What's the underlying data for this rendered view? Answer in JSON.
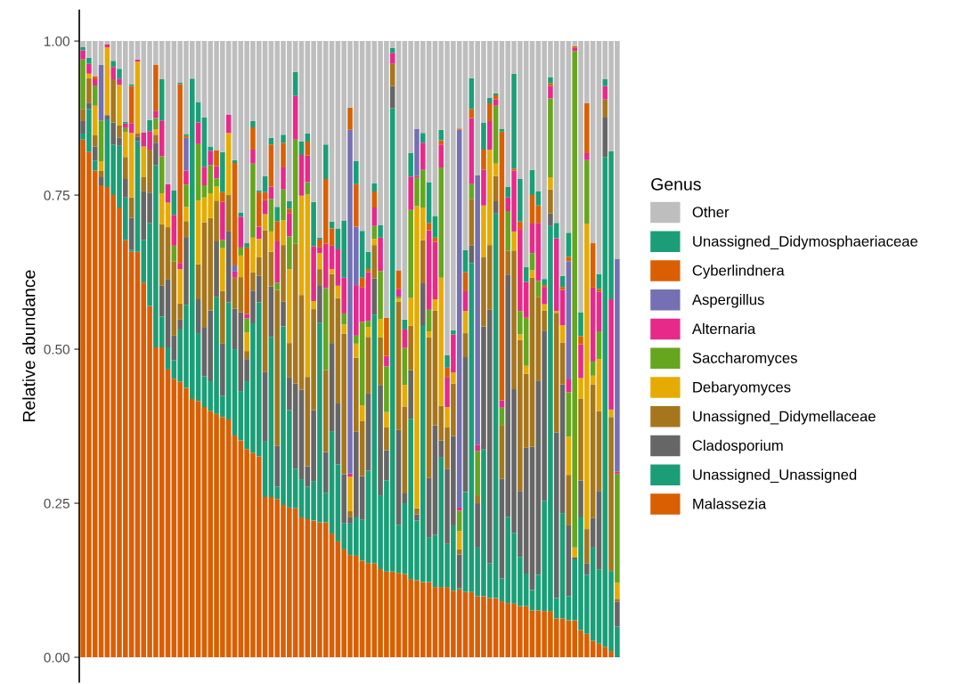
{
  "chart_data": {
    "type": "bar",
    "stacked": true,
    "ylabel": "Relative abundance",
    "legend_title": "Genus",
    "legend": "right",
    "grid": false,
    "tick_labels": "y",
    "categories": [
      null,
      null,
      null,
      null,
      null,
      null,
      null,
      null,
      null,
      null,
      null,
      null,
      null,
      null,
      null,
      null,
      null,
      null,
      null,
      null,
      null,
      null,
      null,
      null,
      null,
      null,
      null,
      null,
      null,
      null,
      null,
      null,
      null,
      null,
      null,
      null,
      null,
      null,
      null,
      null,
      null,
      null,
      null,
      null,
      null,
      null,
      null,
      null,
      null,
      null,
      null,
      null,
      null,
      null,
      null,
      null,
      null,
      null,
      null,
      null,
      null,
      null,
      null,
      null,
      null,
      null,
      null,
      null,
      null,
      null,
      null,
      null,
      null,
      null,
      null,
      null,
      null,
      null,
      null,
      null,
      null,
      null,
      null,
      null,
      null,
      null,
      null,
      null,
      null
    ],
    "ylim": [
      -0.04,
      1.05
    ],
    "yticks": [
      {
        "value": 0,
        "label": "0.00"
      },
      {
        "value": 0.25,
        "label": "0.25"
      },
      {
        "value": 0.5,
        "label": "0.50"
      },
      {
        "value": 0.75,
        "label": "0.75"
      },
      {
        "value": 1,
        "label": "1.00"
      }
    ],
    "series": [
      {
        "name": "Malassezia",
        "color": "#d95f02",
        "values": [
          0.84,
          0.82,
          0.79,
          0.766,
          0.763,
          0.75,
          0.73,
          0.677,
          0.658,
          0.658,
          0.608,
          0.57,
          0.503,
          0.503,
          0.467,
          0.452,
          0.447,
          0.437,
          0.419,
          0.416,
          0.406,
          0.4,
          0.395,
          0.39,
          0.386,
          0.36,
          0.352,
          0.338,
          0.332,
          0.326,
          0.26,
          0.26,
          0.257,
          0.247,
          0.243,
          0.242,
          0.227,
          0.224,
          0.222,
          0.219,
          0.219,
          0.201,
          0.188,
          0.175,
          0.166,
          0.165,
          0.157,
          0.153,
          0.152,
          0.143,
          0.139,
          0.139,
          0.137,
          0.135,
          0.127,
          0.125,
          0.122,
          0.122,
          0.114,
          0.114,
          0.114,
          0.108,
          0.11,
          0.106,
          0.106,
          0.099,
          0.099,
          0.096,
          0.096,
          0.091,
          0.088,
          0.087,
          0.083,
          0.083,
          0.076,
          0.076,
          0.075,
          0.075,
          0.063,
          0.063,
          0.06,
          0.06,
          0.044,
          0.038,
          0.027,
          0.022,
          0.017,
          0.01,
          0
        ]
      },
      {
        "name": "Unassigned_Unassigned",
        "color": "#1b9e77",
        "values": [
          0.01,
          0.07,
          0.016,
          0,
          0.11,
          0.082,
          0.1,
          0.069,
          0.003,
          0.18,
          0.069,
          0.135,
          0.296,
          0.05,
          0.036,
          0.03,
          0.085,
          0.135,
          0.52,
          0.11,
          0.05,
          0.048,
          0.19,
          0.034,
          0.19,
          0.14,
          0.08,
          0.11,
          0.21,
          0.25,
          0.09,
          0.26,
          0.02,
          0.29,
          0.158,
          0.064,
          0.062,
          0.053,
          0.064,
          0.324,
          0.048,
          0.166,
          0.125,
          0.043,
          0.051,
          0.062,
          0.066,
          0.15,
          0.404,
          0.12,
          0.148,
          0.752,
          0.078,
          0.115,
          0.26,
          0.097,
          0.417,
          0.072,
          0.085,
          0.21,
          0.07,
          0.106,
          0.002,
          0.162,
          0.534,
          0.079,
          0.238,
          0.056,
          0.624,
          0.037,
          0.14,
          0.115,
          0.08,
          0.053,
          0.033,
          0.058,
          0.179,
          0.625,
          0.033,
          0.171,
          0.039,
          0.099,
          0.183,
          0.096,
          0.151,
          0.12,
          0.795,
          0.13,
          0.05
        ]
      },
      {
        "name": "Cladosporium",
        "color": "#666666",
        "values": [
          0.02,
          0.01,
          0.023,
          0.013,
          0.007,
          0.036,
          0.013,
          0.03,
          0.052,
          0.007,
          0.08,
          0.049,
          0.036,
          0.05,
          0.11,
          0.04,
          0.016,
          0.11,
          0,
          0.055,
          0.08,
          0.115,
          0.09,
          0.085,
          0.115,
          0.066,
          0.128,
          0.036,
          0.053,
          0.043,
          0.113,
          0.082,
          0.066,
          0.04,
          0.053,
          0.138,
          0.145,
          0.033,
          0.115,
          0.061,
          0.066,
          0.143,
          0.099,
          0.079,
          0.01,
          0.139,
          0.071,
          0.125,
          0.059,
          0.179,
          0.049,
          0.036,
          0.154,
          0.016,
          0.079,
          0.01,
          0.068,
          0.097,
          0.177,
          0.028,
          0.122,
          0.145,
          0.055,
          0.219,
          0.028,
          0.072,
          0.2,
          0.412,
          0.02,
          0.162,
          0.393,
          0.233,
          0.107,
          0.204,
          0.233,
          0.315,
          0.276,
          0.02,
          0.269,
          0.209,
          0.115,
          0.003,
          0.06,
          0.018,
          0.048,
          0.128,
          0.064,
          0,
          0.04
        ]
      },
      {
        "name": "Unassigned_Didymellaceae",
        "color": "#a6761d",
        "values": [
          0.02,
          0.04,
          0.018,
          0.01,
          0,
          0.07,
          0.02,
          0.036,
          0.033,
          0.005,
          0.022,
          0.07,
          0.013,
          0.1,
          0.085,
          0.12,
          0.026,
          0.026,
          0,
          0.057,
          0.17,
          0.15,
          0.066,
          0.085,
          0.06,
          0.05,
          0.057,
          0.013,
          0.03,
          0.03,
          0.23,
          0.056,
          0.253,
          0.092,
          0.056,
          0.227,
          0.154,
          0.145,
          0.164,
          0.026,
          0.133,
          0.112,
          0.171,
          0.228,
          0.01,
          0.12,
          0.089,
          0.092,
          0.054,
          0.077,
          0.037,
          0.036,
          0.208,
          0.141,
          0.072,
          0.01,
          0.07,
          0.228,
          0.187,
          0.056,
          0.067,
          0.085,
          0.008,
          0.039,
          0.076,
          0.013,
          0.112,
          0.105,
          0.041,
          0.087,
          0.039,
          0.225,
          0.245,
          0.12,
          0.274,
          0.136,
          0.033,
          0.039,
          0.194,
          0.068,
          0.082,
          0,
          0.133,
          0.056,
          0.217,
          0.129,
          0.029,
          0.25,
          0.005
        ]
      },
      {
        "name": "Debaryomyces",
        "color": "#e6ab02",
        "values": [
          0,
          0.007,
          0.048,
          0.016,
          0.11,
          0,
          0.066,
          0.04,
          0.105,
          0.117,
          0.05,
          0,
          0.009,
          0.05,
          0.04,
          0,
          0.056,
          0.023,
          0,
          0.103,
          0.04,
          0.04,
          0.023,
          0.07,
          0.1,
          0,
          0.035,
          0.03,
          0.056,
          0.03,
          0.026,
          0.033,
          0,
          0.04,
          0.12,
          0,
          0.161,
          0.296,
          0.013,
          0.026,
          0,
          0.008,
          0.02,
          0.015,
          0.056,
          0.023,
          0.026,
          0.016,
          0.01,
          0.03,
          0.025,
          0,
          0.005,
          0.035,
          0.045,
          0.49,
          0.053,
          0.01,
          0.018,
          0.208,
          0.033,
          0.018,
          0.03,
          0.036,
          0,
          0,
          0.084,
          0.155,
          0.02,
          0,
          0,
          0.031,
          0.009,
          0.013,
          0.012,
          0,
          0.01,
          0.02,
          0.003,
          0.028,
          0.062,
          0.016,
          0.033,
          0.496,
          0.014,
          0.085,
          0,
          0.012,
          0.026
        ]
      },
      {
        "name": "Saccharomyces",
        "color": "#66a61e",
        "values": [
          0.08,
          0,
          0.033,
          0.066,
          0,
          0,
          0,
          0.007,
          0,
          0,
          0,
          0,
          0.018,
          0.06,
          0,
          0.026,
          0,
          0.036,
          0,
          0.092,
          0.02,
          0.046,
          0.013,
          0.013,
          0,
          0,
          0.013,
          0.023,
          0.12,
          0,
          0,
          0.053,
          0.012,
          0.05,
          0.053,
          0.169,
          0,
          0.02,
          0,
          0,
          0.133,
          0,
          0,
          0.018,
          0,
          0.013,
          0.135,
          0.01,
          0.021,
          0.078,
          0.074,
          0,
          0.003,
          0.06,
          0.143,
          0.046,
          0.061,
          0.035,
          0,
          0.179,
          0,
          0,
          0.033,
          0,
          0.024,
          0.072,
          0,
          0,
          0.094,
          0.028,
          0.064,
          0,
          0.038,
          0.078,
          0.028,
          0.026,
          0,
          0.128,
          0,
          0,
          0.072,
          0.806,
          0,
          0.103,
          0.023,
          0.045,
          0,
          0,
          0.177
        ]
      },
      {
        "name": "Alternaria",
        "color": "#e7298a",
        "values": [
          0.015,
          0.016,
          0.01,
          0,
          0.005,
          0.02,
          0.01,
          0.007,
          0.016,
          0.003,
          0.023,
          0.03,
          0.012,
          0.058,
          0.03,
          0.05,
          0.01,
          0.023,
          0,
          0.035,
          0.03,
          0.023,
          0.02,
          0.062,
          0.03,
          0.01,
          0.05,
          0.007,
          0.023,
          0.02,
          0.023,
          0.02,
          0.067,
          0.036,
          0.038,
          0.071,
          0.066,
          0.043,
          0.089,
          0.009,
          0.072,
          0.038,
          0.059,
          0.058,
          0.005,
          0.082,
          0.056,
          0.079,
          0.03,
          0.054,
          0.017,
          0.018,
          0.013,
          0.03,
          0.054,
          0.003,
          0.044,
          0.129,
          0.093,
          0.037,
          0.048,
          0.062,
          0.005,
          0.032,
          0.107,
          0.01,
          0.058,
          0.046,
          0.01,
          0.012,
          0.022,
          0.099,
          0.133,
          0.058,
          0.048,
          0.094,
          0.028,
          0.02,
          0.118,
          0.057,
          0.021,
          0.005,
          0.055,
          0.011,
          0.12,
          0.064,
          0.022,
          0.179,
          0.003
        ]
      },
      {
        "name": "Aspergillus",
        "color": "#7570b3",
        "values": [
          0,
          0,
          0,
          0.09,
          0,
          0,
          0,
          0,
          0,
          0,
          0,
          0,
          0,
          0,
          0,
          0,
          0,
          0.053,
          0,
          0,
          0,
          0,
          0,
          0,
          0,
          0.01,
          0,
          0,
          0,
          0,
          0,
          0,
          0,
          0,
          0,
          0,
          0,
          0,
          0,
          0,
          0,
          0,
          0,
          0,
          0.558,
          0.095,
          0,
          0,
          0,
          0,
          0,
          0,
          0,
          0,
          0,
          0.076,
          0,
          0,
          0,
          0,
          0,
          0,
          0.613,
          0,
          0,
          0.437,
          0,
          0,
          0,
          0,
          0,
          0,
          0,
          0,
          0,
          0,
          0,
          0,
          0,
          0,
          0.192,
          0,
          0,
          0,
          0,
          0,
          0,
          0,
          0.345
        ]
      },
      {
        "name": "Cyberlindnera",
        "color": "#d95f02",
        "values": [
          0,
          0,
          0.005,
          0,
          0,
          0,
          0,
          0,
          0.06,
          0,
          0,
          0,
          0.075,
          0,
          0,
          0,
          0.29,
          0.003,
          0,
          0,
          0,
          0,
          0.026,
          0.016,
          0,
          0.166,
          0,
          0.108,
          0.036,
          0.056,
          0.013,
          0.068,
          0.033,
          0.04,
          0.007,
          0,
          0,
          0.023,
          0,
          0.013,
          0.105,
          0.028,
          0,
          0,
          0.036,
          0.069,
          0.016,
          0.005,
          0.026,
          0,
          0.062,
          0,
          0.03,
          0,
          0,
          0,
          0,
          0.012,
          0.007,
          0.007,
          0.016,
          0,
          0.002,
          0.031,
          0.015,
          0,
          0.033,
          0.029,
          0.007,
          0.436,
          0,
          0.003,
          0.012,
          0,
          0.046,
          0.028,
          0.003,
          0.005,
          0,
          0.005,
          0.007,
          0.003,
          0.013,
          0.081,
          0.072,
          0.005,
          0,
          0,
          0
        ]
      },
      {
        "name": "Unassigned_Didymosphaeriaceae",
        "color": "#1b9e77",
        "values": [
          0.005,
          0.01,
          0,
          0,
          0,
          0.01,
          0.016,
          0.003,
          0.003,
          0,
          0,
          0.018,
          0,
          0.067,
          0,
          0.04,
          0.003,
          0.003,
          0,
          0.033,
          0.08,
          0.007,
          0,
          0.065,
          0,
          0.005,
          0.007,
          0.007,
          0.01,
          0.003,
          0.026,
          0.011,
          0.023,
          0.013,
          0.012,
          0.039,
          0.022,
          0.013,
          0.072,
          0.003,
          0.056,
          0.011,
          0.034,
          0.093,
          0,
          0.037,
          0.076,
          0.028,
          0.013,
          0.02,
          0,
          0.008,
          0,
          0.016,
          0.038,
          0,
          0.016,
          0.066,
          0.035,
          0.017,
          0.02,
          0.007,
          0,
          0.036,
          0.05,
          0,
          0.044,
          0.009,
          0.003,
          0.004,
          0.017,
          0.154,
          0.069,
          0.024,
          0.041,
          0.023,
          0.01,
          0.009,
          0.025,
          0.018,
          0.039,
          0,
          0.039,
          0,
          0,
          0.024,
          0.011,
          0.24,
          0
        ]
      },
      {
        "name": "Other",
        "color": "#bebebe",
        "values": [
          0.01,
          0.027,
          0.057,
          0.039,
          0.005,
          0.032,
          0.045,
          0.131,
          0.07,
          0.03,
          0.148,
          0.128,
          0.038,
          0.062,
          0.232,
          0.242,
          0.067,
          0.151,
          0.061,
          0.099,
          0.124,
          0.171,
          0.177,
          0.18,
          0.119,
          0.193,
          0.278,
          0.328,
          0.13,
          0.242,
          0.219,
          0.157,
          0.269,
          0.152,
          0.26,
          0.05,
          0.163,
          0.15,
          0.261,
          0.319,
          0.168,
          0.293,
          0.304,
          0.291,
          0.108,
          0.195,
          0.308,
          0.342,
          0.231,
          0.299,
          0.449,
          0.011,
          0.372,
          0.452,
          0.182,
          0.143,
          0.149,
          0.229,
          0.284,
          0.144,
          0.51,
          0.469,
          0.142,
          0.339,
          0.06,
          0.218,
          0.132,
          0.092,
          0.085,
          0.143,
          0.237,
          0.053,
          0.224,
          0.367,
          0.209,
          0.244,
          0.386,
          0.059,
          0.295,
          0.381,
          0.311,
          0.008,
          0.44,
          0.101,
          0.328,
          0.378,
          0.062,
          0.179,
          0.354
        ]
      }
    ]
  }
}
